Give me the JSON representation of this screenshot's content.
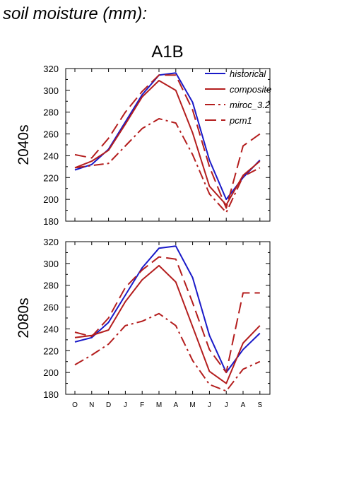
{
  "page_title": "soil moisture (mm):",
  "chart_data": {
    "type": "line",
    "title": "A1B",
    "categories": [
      "O",
      "N",
      "D",
      "J",
      "F",
      "M",
      "A",
      "M",
      "J",
      "J",
      "A",
      "S"
    ],
    "ylim": [
      180,
      320
    ],
    "yticks": [
      180,
      200,
      220,
      240,
      260,
      280,
      300,
      320
    ],
    "grid": false,
    "legend_position": "top-right",
    "styles": {
      "historical": {
        "color": "#1a1ac8",
        "dash": "solid"
      },
      "composite": {
        "color": "#b41e1e",
        "dash": "solid"
      },
      "miroc_3.2": {
        "color": "#b41e1e",
        "dash": "dash-dot"
      },
      "pcm1": {
        "color": "#b41e1e",
        "dash": "long-dash"
      }
    },
    "panels": [
      {
        "row_label": "2040s",
        "show_legend": true,
        "series": [
          {
            "name": "historical",
            "values": [
              227,
              232,
              246,
              271,
              296,
              314,
              316,
              289,
              236,
              200,
              220,
              236
            ]
          },
          {
            "name": "composite",
            "values": [
              229,
              235,
              245,
              269,
              294,
              309,
              300,
              261,
              212,
              195,
              222,
              235
            ]
          },
          {
            "name": "miroc_3.2",
            "values": [
              229,
              231,
              233,
              249,
              265,
              274,
              270,
              241,
              205,
              188,
              221,
              229
            ]
          },
          {
            "name": "pcm1",
            "values": [
              241,
              238,
              256,
              280,
              299,
              314,
              314,
              282,
              230,
              192,
              249,
              260
            ]
          }
        ]
      },
      {
        "row_label": "2080s",
        "show_legend": false,
        "series": [
          {
            "name": "historical",
            "values": [
              228,
              232,
              246,
              271,
              296,
              314,
              316,
              287,
              234,
              200,
              221,
              236
            ]
          },
          {
            "name": "composite",
            "values": [
              232,
              234,
              239,
              265,
              285,
              298,
              283,
              242,
              201,
              190,
              227,
              243
            ]
          },
          {
            "name": "miroc_3.2",
            "values": [
              207,
              216,
              226,
              243,
              247,
              254,
              243,
              211,
              189,
              183,
              203,
              210
            ]
          },
          {
            "name": "pcm1",
            "values": [
              237,
              233,
              250,
              278,
              294,
              306,
              304,
              264,
              221,
              200,
              273,
              273
            ]
          }
        ]
      }
    ]
  }
}
